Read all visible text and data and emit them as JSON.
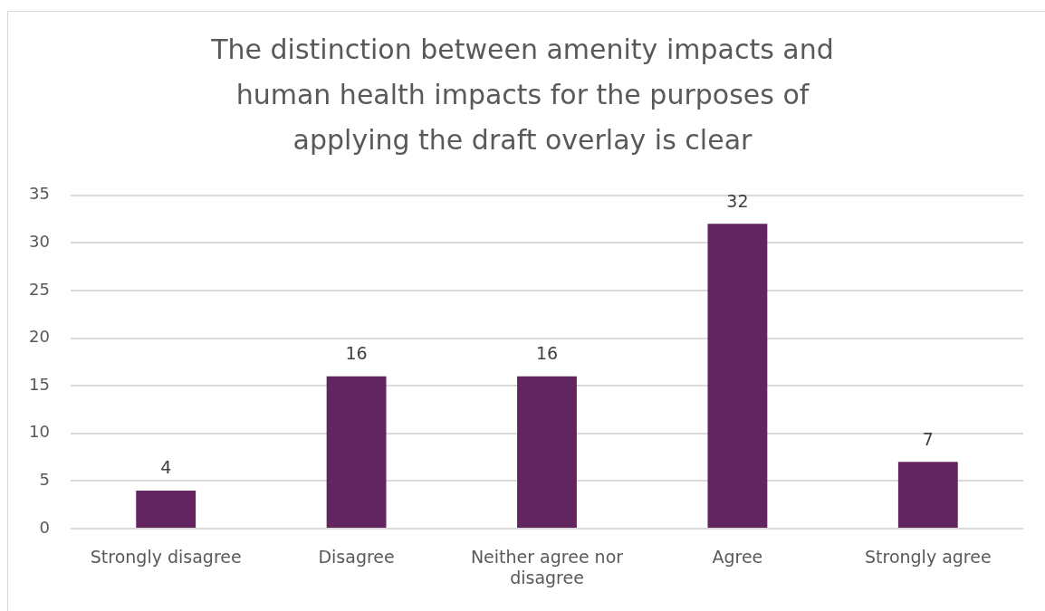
{
  "chart_data": {
    "type": "bar",
    "title": "The distinction between amenity impacts and human health impacts for the purposes of applying the draft overlay is clear",
    "categories": [
      "Strongly disagree",
      "Disagree",
      "Neither agree nor disagree",
      "Agree",
      "Strongly agree"
    ],
    "values": [
      4,
      16,
      16,
      32,
      7
    ],
    "color": "#63255f",
    "ylim": [
      0,
      35
    ],
    "yticks": [
      0,
      5,
      10,
      15,
      20,
      25,
      30,
      35
    ],
    "grid": "y",
    "data_labels": true
  }
}
